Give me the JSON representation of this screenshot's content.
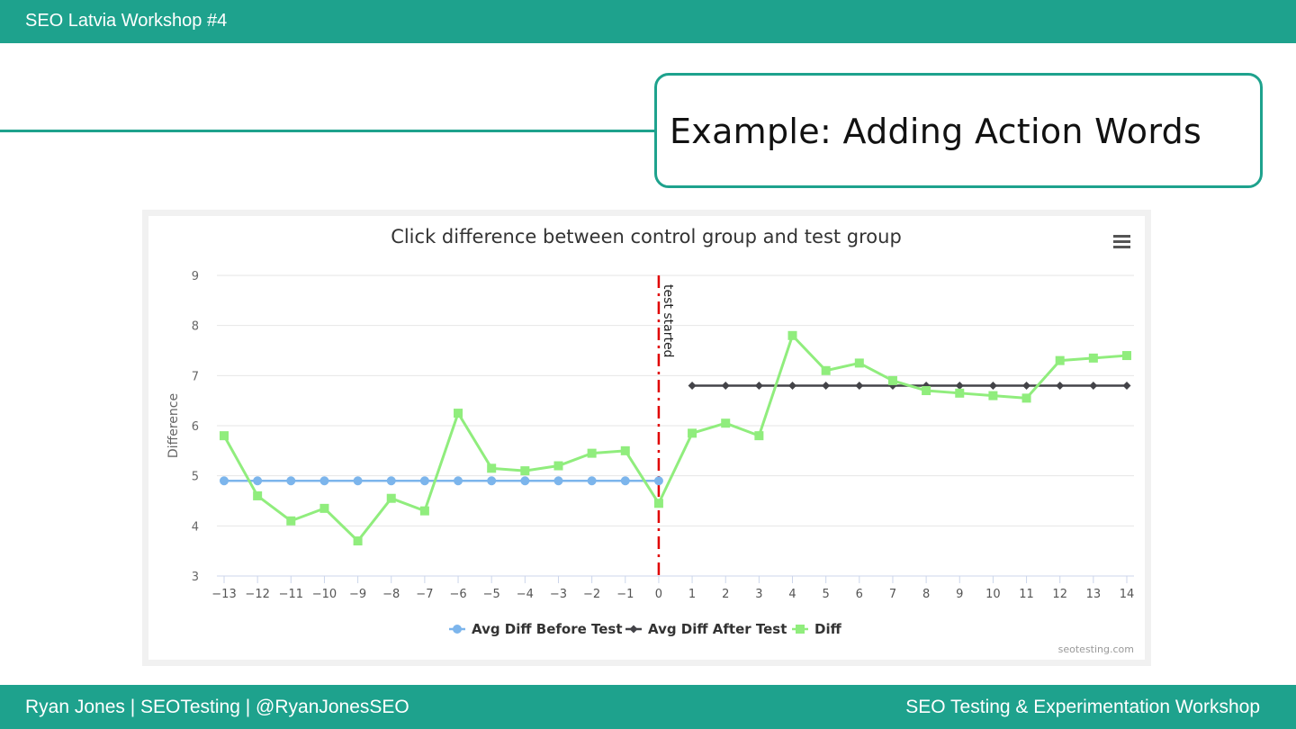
{
  "header": {
    "title": "SEO Latvia Workshop #4"
  },
  "slide": {
    "title": "Example: Adding Action Words"
  },
  "footer": {
    "left": "Ryan Jones | SEOTesting | @RyanJonesSEO",
    "right": "SEO Testing & Experimentation Workshop"
  },
  "colors": {
    "brand": "#1ea28d",
    "before": "#7cb5ec",
    "after": "#434348",
    "diff": "#90ed7d",
    "marker": "#e00000"
  },
  "chart_data": {
    "type": "line",
    "title": "Click difference between control group and test group",
    "xlabel": "",
    "ylabel": "Difference",
    "ylim": [
      3,
      9
    ],
    "yticks": [
      3,
      4,
      5,
      6,
      7,
      8,
      9
    ],
    "x": [
      -13,
      -12,
      -11,
      -10,
      -9,
      -8,
      -7,
      -6,
      -5,
      -4,
      -3,
      -2,
      -1,
      0,
      1,
      2,
      3,
      4,
      5,
      6,
      7,
      8,
      9,
      10,
      11,
      12,
      13,
      14
    ],
    "x_tick_labels": [
      "−13",
      "−12",
      "−11",
      "−10",
      "−9",
      "−8",
      "−7",
      "−6",
      "−5",
      "−4",
      "−3",
      "−2",
      "−1",
      "0",
      "1",
      "2",
      "3",
      "4",
      "5",
      "6",
      "7",
      "8",
      "9",
      "10",
      "11",
      "12",
      "13",
      "14"
    ],
    "series": [
      {
        "name": "Avg Diff Before Test",
        "marker": "circle",
        "x": [
          -13,
          -12,
          -11,
          -10,
          -9,
          -8,
          -7,
          -6,
          -5,
          -4,
          -3,
          -2,
          -1,
          0
        ],
        "values": [
          4.9,
          4.9,
          4.9,
          4.9,
          4.9,
          4.9,
          4.9,
          4.9,
          4.9,
          4.9,
          4.9,
          4.9,
          4.9,
          4.9
        ]
      },
      {
        "name": "Avg Diff After Test",
        "marker": "diamond",
        "x": [
          1,
          2,
          3,
          4,
          5,
          6,
          7,
          8,
          9,
          10,
          11,
          12,
          13,
          14
        ],
        "values": [
          6.8,
          6.8,
          6.8,
          6.8,
          6.8,
          6.8,
          6.8,
          6.8,
          6.8,
          6.8,
          6.8,
          6.8,
          6.8,
          6.8
        ]
      },
      {
        "name": "Diff",
        "marker": "square",
        "x": [
          -13,
          -12,
          -11,
          -10,
          -9,
          -8,
          -7,
          -6,
          -5,
          -4,
          -3,
          -2,
          -1,
          0,
          1,
          2,
          3,
          4,
          5,
          6,
          7,
          8,
          9,
          10,
          11,
          12,
          13,
          14
        ],
        "values": [
          5.8,
          4.6,
          4.1,
          4.35,
          3.7,
          4.55,
          4.3,
          6.25,
          5.15,
          5.1,
          5.2,
          5.45,
          5.5,
          4.45,
          5.85,
          6.05,
          5.8,
          7.8,
          7.1,
          7.25,
          6.9,
          6.7,
          6.65,
          6.6,
          6.55,
          7.3,
          7.35,
          7.4
        ]
      }
    ],
    "plot_line": {
      "x": 0,
      "label": "test started"
    },
    "legend": [
      "Avg Diff Before Test",
      "Avg Diff After Test",
      "Diff"
    ],
    "legend_position": "bottom-center",
    "credit": "seotesting.com",
    "menu_icon": "hamburger-menu-icon"
  }
}
